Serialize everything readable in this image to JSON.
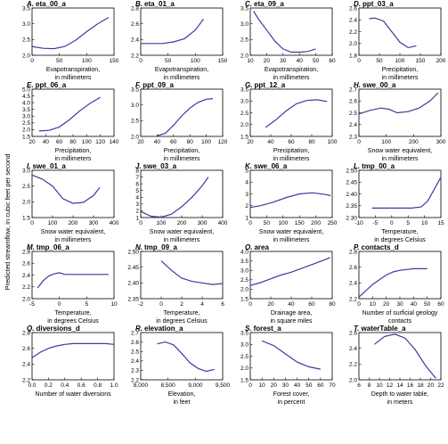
{
  "figure": {
    "ylabel": "Predicted streamflow, in cubic feet per second"
  },
  "chart_data": [
    {
      "type": "line",
      "letter": "A.",
      "name": "eta_00_a",
      "xlabel": [
        "Evapotranspiration,",
        "in millimeters"
      ],
      "xlim": [
        0,
        150
      ],
      "xticks": [
        0,
        50,
        100,
        150
      ],
      "ylim": [
        2.0,
        3.5
      ],
      "yticks": [
        2.0,
        2.5,
        3.0,
        3.5
      ],
      "x": [
        0,
        20,
        40,
        60,
        80,
        100,
        120,
        140
      ],
      "y": [
        2.28,
        2.22,
        2.21,
        2.28,
        2.48,
        2.75,
        3.0,
        3.2
      ]
    },
    {
      "type": "line",
      "letter": "B.",
      "name": "eta_01_a",
      "xlabel": [
        "Evapotranspiration,",
        "in millimeters"
      ],
      "xlim": [
        0,
        150
      ],
      "xticks": [
        0,
        50,
        100,
        150
      ],
      "ylim": [
        2.2,
        2.8
      ],
      "yticks": [
        2.2,
        2.4,
        2.6,
        2.8
      ],
      "x": [
        0,
        20,
        40,
        60,
        80,
        100,
        115
      ],
      "y": [
        2.35,
        2.35,
        2.35,
        2.37,
        2.41,
        2.52,
        2.66
      ]
    },
    {
      "type": "line",
      "letter": "C.",
      "name": "eta_09_a",
      "xlabel": [
        "Evapotranspiration,",
        "in millimeters"
      ],
      "xlim": [
        10,
        60
      ],
      "xticks": [
        10,
        20,
        30,
        40,
        50,
        60
      ],
      "ylim": [
        2.0,
        3.5
      ],
      "yticks": [
        2.0,
        2.5,
        3.0,
        3.5
      ],
      "x": [
        12,
        15,
        20,
        25,
        30,
        35,
        40,
        45,
        50
      ],
      "y": [
        3.4,
        3.15,
        2.8,
        2.45,
        2.2,
        2.1,
        2.1,
        2.12,
        2.2
      ]
    },
    {
      "type": "line",
      "letter": "D.",
      "name": "ppt_03_a",
      "xlabel": [
        "Precipitation,",
        "in millimeters"
      ],
      "xlim": [
        0,
        200
      ],
      "xticks": [
        0,
        50,
        100,
        150,
        200
      ],
      "ylim": [
        1.8,
        2.6
      ],
      "yticks": [
        1.8,
        2.0,
        2.2,
        2.4,
        2.6
      ],
      "x": [
        25,
        40,
        60,
        80,
        100,
        120,
        140
      ],
      "y": [
        2.42,
        2.43,
        2.38,
        2.2,
        2.02,
        1.93,
        1.96
      ]
    },
    {
      "type": "line",
      "letter": "E.",
      "name": "ppt_06_a",
      "xlabel": [
        "Precipitation,",
        "in millimeters"
      ],
      "xlim": [
        20,
        140
      ],
      "xticks": [
        20,
        40,
        60,
        80,
        100,
        120,
        140
      ],
      "ylim": [
        1.5,
        5.0
      ],
      "yticks": [
        1.5,
        2.0,
        2.5,
        3.0,
        3.5,
        4.0,
        4.5,
        5.0
      ],
      "x": [
        30,
        45,
        60,
        75,
        90,
        105,
        120
      ],
      "y": [
        1.9,
        1.95,
        2.2,
        2.75,
        3.4,
        3.95,
        4.4
      ]
    },
    {
      "type": "line",
      "letter": "F.",
      "name": "ppt_09_a",
      "xlabel": [
        "Precipitation,",
        "in millimeters"
      ],
      "xlim": [
        20,
        120
      ],
      "xticks": [
        20,
        40,
        60,
        80,
        100,
        120
      ],
      "ylim": [
        2.0,
        3.5
      ],
      "yticks": [
        2.0,
        2.5,
        3.0,
        3.5
      ],
      "x": [
        40,
        50,
        60,
        70,
        80,
        90,
        100,
        108
      ],
      "y": [
        2.02,
        2.1,
        2.35,
        2.65,
        2.9,
        3.08,
        3.18,
        3.2
      ]
    },
    {
      "type": "line",
      "letter": "G.",
      "name": "ppt_12_a",
      "xlabel": [
        "Precipitation,",
        "in millimeters"
      ],
      "xlim": [
        20,
        100
      ],
      "xticks": [
        20,
        40,
        60,
        80,
        100
      ],
      "ylim": [
        1.5,
        3.5
      ],
      "yticks": [
        1.5,
        2.0,
        2.5,
        3.0,
        3.5
      ],
      "x": [
        35,
        45,
        55,
        65,
        75,
        85,
        95
      ],
      "y": [
        1.88,
        2.2,
        2.58,
        2.88,
        3.02,
        3.05,
        2.98
      ]
    },
    {
      "type": "line",
      "letter": "H.",
      "name": "swe_00_a",
      "xlabel": [
        "Snow water equivalent,",
        "in millimeters"
      ],
      "xlim": [
        0,
        300
      ],
      "xticks": [
        0,
        100,
        200,
        300
      ],
      "ylim": [
        2.3,
        2.7
      ],
      "yticks": [
        2.3,
        2.4,
        2.5,
        2.6,
        2.7
      ],
      "x": [
        0,
        40,
        80,
        110,
        140,
        180,
        220,
        260,
        290
      ],
      "y": [
        2.49,
        2.52,
        2.54,
        2.53,
        2.5,
        2.51,
        2.54,
        2.6,
        2.67
      ]
    },
    {
      "type": "line",
      "letter": "I.",
      "name": "swe_01_a",
      "xlabel": [
        "Snow water equivalent,",
        "in millimeters"
      ],
      "xlim": [
        0,
        400
      ],
      "xticks": [
        0,
        100,
        200,
        300,
        400
      ],
      "ylim": [
        1.5,
        3.0
      ],
      "yticks": [
        1.5,
        2.0,
        2.5,
        3.0
      ],
      "x": [
        0,
        50,
        100,
        150,
        200,
        250,
        300,
        330
      ],
      "y": [
        2.85,
        2.72,
        2.5,
        2.1,
        1.95,
        1.98,
        2.2,
        2.45
      ]
    },
    {
      "type": "line",
      "letter": "J.",
      "name": "swe_03_a",
      "xlabel": [
        "Snow water equivalent,",
        "in millimeters"
      ],
      "xlim": [
        0,
        400
      ],
      "xticks": [
        0,
        100,
        200,
        300,
        400
      ],
      "ylim": [
        1,
        8
      ],
      "yticks": [
        1,
        2,
        3,
        4,
        5,
        6,
        7,
        8
      ],
      "x": [
        0,
        50,
        100,
        150,
        200,
        250,
        300,
        330
      ],
      "y": [
        1.9,
        1.2,
        1.05,
        1.5,
        2.6,
        4.0,
        5.7,
        7.0
      ]
    },
    {
      "type": "line",
      "letter": "K.",
      "name": "swe_06_a",
      "xlabel": [
        "Snow water equivalent,",
        "in millimeters"
      ],
      "xlim": [
        0,
        250
      ],
      "xticks": [
        0,
        50,
        100,
        150,
        200,
        250
      ],
      "ylim": [
        1,
        5
      ],
      "yticks": [
        1,
        2,
        3,
        4,
        5
      ],
      "x": [
        0,
        30,
        70,
        110,
        150,
        190,
        230,
        245
      ],
      "y": [
        1.85,
        2.0,
        2.3,
        2.7,
        3.0,
        3.1,
        2.95,
        2.85
      ]
    },
    {
      "type": "line",
      "letter": "L.",
      "name": "tmp_00_a",
      "xlabel": [
        "Temperature,",
        "in degrees Celsius"
      ],
      "xlim": [
        -10,
        15
      ],
      "xticks": [
        -10,
        -5,
        0,
        5,
        10,
        15
      ],
      "ylim": [
        2.3,
        2.5
      ],
      "yticks": [
        2.3,
        2.35,
        2.4,
        2.45,
        2.5
      ],
      "x": [
        -6,
        -2,
        2,
        6,
        9,
        11,
        13,
        15
      ],
      "y": [
        2.34,
        2.34,
        2.34,
        2.34,
        2.345,
        2.37,
        2.42,
        2.47
      ]
    },
    {
      "type": "line",
      "letter": "M.",
      "name": "tmp_06_a",
      "xlabel": [
        "Temperature,",
        "in degrees Celsius"
      ],
      "xlim": [
        -5,
        10
      ],
      "xticks": [
        -5,
        0,
        5,
        10
      ],
      "ylim": [
        2.0,
        2.8
      ],
      "yticks": [
        2.0,
        2.2,
        2.4,
        2.6,
        2.8
      ],
      "x": [
        -4,
        -3,
        -2,
        -1,
        0,
        1,
        3,
        5,
        7,
        9
      ],
      "y": [
        2.18,
        2.3,
        2.38,
        2.42,
        2.44,
        2.41,
        2.41,
        2.41,
        2.41,
        2.41
      ]
    },
    {
      "type": "line",
      "letter": "N.",
      "name": "tmp_09_a",
      "xlabel": [
        "Temperature,",
        "in degrees Celsius"
      ],
      "xlim": [
        -2,
        6
      ],
      "xticks": [
        -2,
        0,
        2,
        4,
        6
      ],
      "ylim": [
        2.35,
        2.5
      ],
      "yticks": [
        2.35,
        2.4,
        2.45,
        2.5
      ],
      "x": [
        0,
        1,
        2,
        3,
        4,
        5,
        6
      ],
      "y": [
        2.47,
        2.44,
        2.415,
        2.405,
        2.4,
        2.395,
        2.398
      ]
    },
    {
      "type": "line",
      "letter": "O.",
      "name": "area",
      "xlabel": [
        "Drainage area,",
        "in square miles"
      ],
      "xlim": [
        0,
        80
      ],
      "xticks": [
        0,
        20,
        40,
        60,
        80
      ],
      "ylim": [
        1.5,
        4.0
      ],
      "yticks": [
        1.5,
        2.0,
        2.5,
        3.0,
        3.5,
        4.0
      ],
      "x": [
        0,
        10,
        20,
        30,
        40,
        50,
        60,
        70,
        78
      ],
      "y": [
        2.2,
        2.35,
        2.55,
        2.75,
        2.9,
        3.1,
        3.3,
        3.5,
        3.68
      ]
    },
    {
      "type": "line",
      "letter": "P.",
      "name": "contacts_d",
      "xlabel": [
        "Number of surficial geology",
        "contacts"
      ],
      "xlim": [
        0,
        60
      ],
      "xticks": [
        0,
        10,
        20,
        30,
        40,
        50,
        60
      ],
      "ylim": [
        2.2,
        2.8
      ],
      "yticks": [
        2.2,
        2.4,
        2.6,
        2.8
      ],
      "x": [
        0,
        5,
        10,
        15,
        20,
        25,
        30,
        35,
        40,
        45,
        50
      ],
      "y": [
        2.22,
        2.3,
        2.38,
        2.44,
        2.5,
        2.54,
        2.56,
        2.57,
        2.58,
        2.58,
        2.58
      ]
    },
    {
      "type": "line",
      "letter": "Q.",
      "name": "diversions_d",
      "xlabel": [
        "Number of water diversions"
      ],
      "xlim": [
        0,
        1.0
      ],
      "xticks": [
        0,
        0.2,
        0.4,
        0.6,
        0.8,
        1.0
      ],
      "ylim": [
        2.2,
        2.8
      ],
      "yticks": [
        2.2,
        2.4,
        2.6,
        2.8
      ],
      "x": [
        0,
        0.1,
        0.2,
        0.3,
        0.4,
        0.5,
        0.6,
        0.7,
        0.8,
        0.9,
        1.0
      ],
      "y": [
        2.48,
        2.55,
        2.6,
        2.63,
        2.65,
        2.66,
        2.66,
        2.66,
        2.66,
        2.66,
        2.65
      ]
    },
    {
      "type": "line",
      "letter": "R.",
      "name": "elevation_a",
      "xlabel": [
        "Elevation,",
        "in feet"
      ],
      "xlim": [
        8000,
        9500
      ],
      "xticks": [
        8000,
        8500,
        9000,
        9500
      ],
      "ylim": [
        2.2,
        2.7
      ],
      "yticks": [
        2.2,
        2.3,
        2.4,
        2.5,
        2.6,
        2.7
      ],
      "x": [
        8300,
        8450,
        8600,
        8750,
        8900,
        9050,
        9200,
        9350
      ],
      "y": [
        2.58,
        2.6,
        2.57,
        2.48,
        2.38,
        2.32,
        2.29,
        2.31
      ]
    },
    {
      "type": "line",
      "letter": "S.",
      "name": "forest_a",
      "xlabel": [
        "Forest cover,",
        "in percent"
      ],
      "xlim": [
        0,
        70
      ],
      "xticks": [
        0,
        10,
        20,
        30,
        40,
        50,
        60,
        70
      ],
      "ylim": [
        1.5,
        3.5
      ],
      "yticks": [
        1.5,
        2.0,
        2.5,
        3.0,
        3.5
      ],
      "x": [
        10,
        20,
        30,
        40,
        50,
        60
      ],
      "y": [
        3.15,
        2.95,
        2.6,
        2.25,
        2.05,
        1.95
      ]
    },
    {
      "type": "line",
      "letter": "T.",
      "name": "waterTable_a",
      "xlabel": [
        "Depth to water table,",
        "in meters"
      ],
      "xlim": [
        6,
        22
      ],
      "xticks": [
        6,
        8,
        10,
        12,
        14,
        16,
        18,
        20,
        22
      ],
      "ylim": [
        2.0,
        2.6
      ],
      "yticks": [
        2.0,
        2.2,
        2.4,
        2.6
      ],
      "x": [
        9,
        11,
        13,
        15,
        17,
        19,
        21
      ],
      "y": [
        2.45,
        2.55,
        2.58,
        2.53,
        2.38,
        2.18,
        2.02
      ]
    }
  ]
}
